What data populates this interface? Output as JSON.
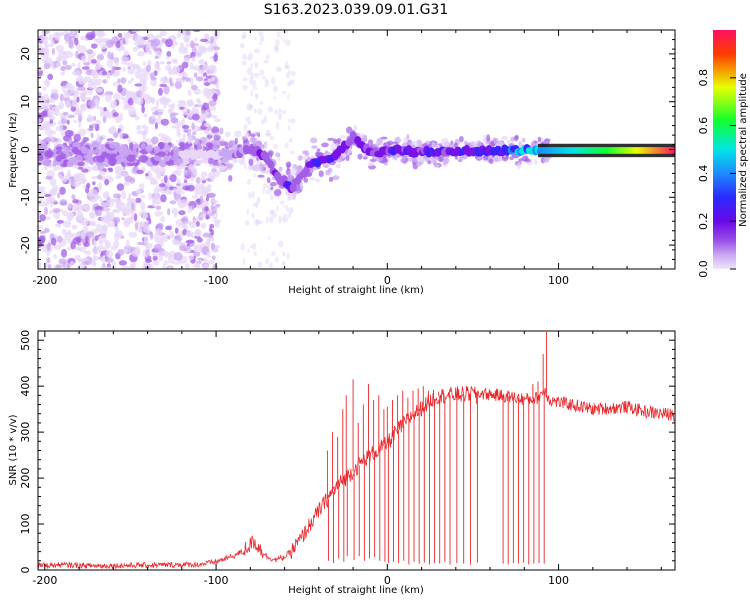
{
  "title": "S163.2023.039.09.01.G31",
  "chart_data": [
    {
      "type": "heatmap",
      "xlabel": "Height of straight line (km)",
      "ylabel": "Frequency (Hz)",
      "xlim": [
        -204,
        168
      ],
      "ylim": [
        -25,
        25
      ],
      "xticks": [
        -200,
        -100,
        0,
        100
      ],
      "yticks": [
        -20,
        -10,
        0,
        10,
        20
      ],
      "colorbar": {
        "label": "Normalized spectral amplitude",
        "range": [
          0,
          1
        ],
        "ticks": [
          0.0,
          0.2,
          0.4,
          0.6,
          0.8
        ],
        "colormap": "purple-blue-cyan-green-yellow-red",
        "colors": [
          "#e8d7f8",
          "#c9a6f2",
          "#a35ee8",
          "#7a12e8",
          "#3a22ff",
          "#1e8bff",
          "#00e5e5",
          "#10ff30",
          "#e8ff00",
          "#ff3b00",
          "#ff1060"
        ]
      },
      "ridge": {
        "x": [
          -120,
          -110,
          -100,
          -95,
          -90,
          -85,
          -80,
          -75,
          -70,
          -67,
          -64,
          -62,
          -60,
          -58,
          -56,
          -54,
          -52,
          -50,
          -47,
          -44,
          -40,
          -37,
          -34,
          -31,
          -28,
          -25,
          -22,
          -20,
          -18,
          -15,
          -12,
          -9,
          -6,
          -3,
          0,
          5,
          10,
          20,
          30,
          40,
          50,
          60,
          70,
          80,
          88,
          100,
          120,
          140,
          168
        ],
        "y": [
          -1.0,
          -1.0,
          -1.2,
          -0.8,
          -1.0,
          -0.5,
          0.0,
          -0.5,
          -2.0,
          -4.0,
          -6.0,
          -7.0,
          -6.5,
          -7.5,
          -8.5,
          -7.0,
          -6.0,
          -5.5,
          -4.0,
          -2.8,
          -2.5,
          -2.0,
          -2.0,
          -1.5,
          -0.5,
          0.5,
          1.2,
          3.2,
          2.2,
          1.0,
          0.0,
          -0.5,
          -0.8,
          -0.6,
          -0.3,
          -0.2,
          -0.3,
          -0.5,
          -0.4,
          -0.3,
          -0.3,
          -0.3,
          -0.3,
          -0.2,
          -0.2,
          -0.2,
          -0.2,
          -0.2,
          -0.2
        ],
        "amplitude": [
          0.04,
          0.05,
          0.06,
          0.12,
          0.18,
          0.2,
          0.22,
          0.25,
          0.28,
          0.22,
          0.4,
          0.25,
          0.3,
          0.45,
          0.35,
          0.25,
          0.3,
          0.3,
          0.32,
          0.35,
          0.4,
          0.38,
          0.42,
          0.4,
          0.35,
          0.3,
          0.35,
          0.28,
          0.3,
          0.3,
          0.3,
          0.28,
          0.3,
          0.3,
          0.32,
          0.38,
          0.35,
          0.34,
          0.35,
          0.36,
          0.38,
          0.4,
          0.45,
          0.55,
          0.6,
          0.72,
          0.82,
          0.88,
          0.92
        ]
      }
    },
    {
      "type": "line",
      "xlabel": "Height of straight line (km)",
      "ylabel": "SNR (10 * v/v)",
      "xlim": [
        -204,
        168
      ],
      "ylim": [
        0,
        520
      ],
      "xticks": [
        -200,
        -100,
        0,
        100
      ],
      "yticks": [
        0,
        100,
        200,
        300,
        400,
        500
      ],
      "series": [
        {
          "color": "#e8282c",
          "x": [
            -204,
            -190,
            -170,
            -150,
            -130,
            -110,
            -100,
            -95,
            -90,
            -85,
            -80,
            -78,
            -75,
            -70,
            -65,
            -60,
            -55,
            -50,
            -45,
            -40,
            -35,
            -30,
            -25,
            -20,
            -15,
            -10,
            -5,
            0,
            5,
            10,
            15,
            20,
            25,
            30,
            35,
            40,
            45,
            50,
            55,
            60,
            65,
            70,
            75,
            80,
            85,
            88,
            90,
            92,
            95,
            100,
            110,
            120,
            130,
            140,
            150,
            160,
            168
          ],
          "y": [
            10,
            11,
            9,
            10,
            11,
            12,
            18,
            24,
            30,
            40,
            55,
            62,
            50,
            28,
            22,
            28,
            45,
            70,
            100,
            128,
            155,
            180,
            198,
            215,
            235,
            250,
            262,
            275,
            300,
            320,
            338,
            352,
            368,
            378,
            380,
            382,
            382,
            385,
            384,
            382,
            380,
            378,
            375,
            372,
            372,
            375,
            385,
            390,
            370,
            365,
            358,
            350,
            352,
            355,
            345,
            340,
            338
          ]
        }
      ],
      "spikes": {
        "x": [
          -35,
          -32,
          -29,
          -26,
          -24,
          -20,
          -17,
          -14,
          -11,
          -8,
          -5,
          -2,
          0,
          3,
          6,
          9,
          12,
          15,
          18,
          21,
          24,
          27,
          30,
          33,
          36,
          40,
          44,
          48,
          52,
          67,
          70,
          73,
          76,
          79,
          82,
          85,
          88,
          91,
          93
        ],
        "y": [
          260,
          300,
          290,
          350,
          380,
          415,
          320,
          360,
          405,
          370,
          380,
          350,
          355,
          370,
          380,
          390,
          375,
          390,
          395,
          400,
          390,
          392,
          388,
          385,
          380,
          382,
          378,
          372,
          362,
          370,
          368,
          375,
          372,
          378,
          380,
          405,
          410,
          470,
          518
        ]
      },
      "dropouts": {
        "x": [
          -35,
          -32,
          -29,
          -26,
          -24,
          -20,
          -17,
          -14,
          -11,
          -8,
          -5,
          -2,
          0,
          3,
          6,
          9,
          12,
          15,
          18,
          21,
          24,
          27,
          30,
          33,
          36,
          40,
          44,
          48,
          52,
          67,
          70,
          73,
          76,
          79,
          82,
          85,
          88,
          91
        ],
        "y": [
          20,
          15,
          25,
          18,
          30,
          22,
          30,
          20,
          25,
          28,
          20,
          18,
          15,
          18,
          15,
          20,
          12,
          18,
          14,
          16,
          12,
          15,
          14,
          18,
          12,
          15,
          14,
          12,
          16,
          14,
          12,
          15,
          14,
          16,
          12,
          14,
          15,
          14
        ]
      }
    }
  ]
}
